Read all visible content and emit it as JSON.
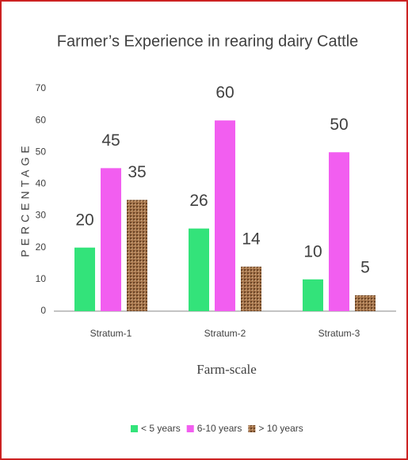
{
  "chart_data": {
    "type": "bar",
    "title": "Farmer’s Experience in rearing dairy Cattle",
    "xlabel": "Farm-scale",
    "ylabel": "PERCENTAGE",
    "categories": [
      "Stratum-1",
      "Stratum-2",
      "Stratum-3"
    ],
    "series": [
      {
        "name": "< 5 years",
        "color": "#33e37a",
        "values": [
          20,
          26,
          10
        ]
      },
      {
        "name": "6-10 years",
        "color": "#f25ef0",
        "values": [
          45,
          60,
          50
        ]
      },
      {
        "name": "> 10 years",
        "color": "#a8774e",
        "values": [
          35,
          14,
          5
        ]
      }
    ],
    "ylim": [
      0,
      70
    ],
    "yticks": [
      0,
      10,
      20,
      30,
      40,
      50,
      60,
      70
    ],
    "grid": false,
    "legend": "bottom"
  }
}
